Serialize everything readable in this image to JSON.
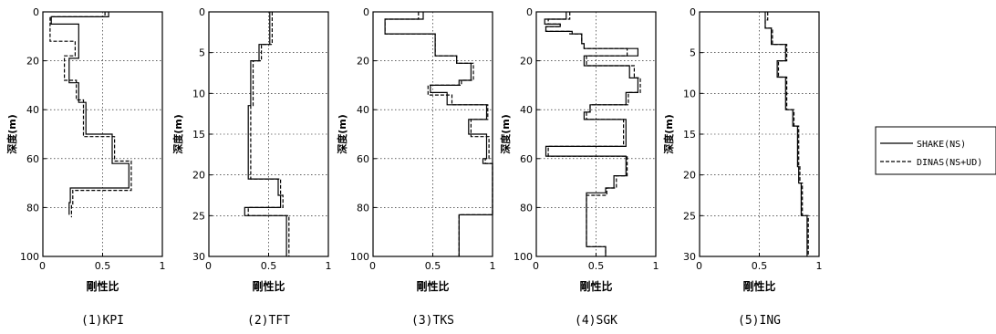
{
  "legend": {
    "solid_label": "SHAKE(NS)",
    "dashed_label": "DINAS(NS+UD)"
  },
  "chart_data": [
    {
      "type": "line",
      "caption": "(1)KPI",
      "xlabel": "剛性比",
      "ylabel": "深度(m)",
      "xlim": [
        0,
        1
      ],
      "ylim": [
        0,
        100
      ],
      "y_inverted": true,
      "xticks": [
        "0",
        "0.5",
        "1"
      ],
      "yticks": [
        "0",
        "20",
        "40",
        "60",
        "80",
        "100"
      ],
      "xtick_values": [
        0,
        0.5,
        1
      ],
      "ytick_values": [
        0,
        20,
        40,
        60,
        80,
        100
      ],
      "grid": "dotted at x=0.5 and each y tick",
      "series": [
        {
          "name": "SHAKE(NS)",
          "style": "solid",
          "x": [
            0.55,
            0.55,
            0.07,
            0.07,
            0.3,
            0.3,
            0.22,
            0.22,
            0.3,
            0.3,
            0.36,
            0.36,
            0.58,
            0.58,
            0.72,
            0.72,
            0.23,
            0.23,
            0.22,
            0.22
          ],
          "y": [
            0,
            2,
            2,
            5,
            5,
            19,
            19,
            29,
            29,
            37,
            37,
            50,
            50,
            62,
            62,
            72,
            72,
            78,
            78,
            83
          ]
        },
        {
          "name": "DINAS(NS+UD)",
          "style": "dashed",
          "x": [
            0.52,
            0.52,
            0.06,
            0.06,
            0.27,
            0.27,
            0.18,
            0.18,
            0.28,
            0.28,
            0.34,
            0.34,
            0.6,
            0.6,
            0.74,
            0.74,
            0.25,
            0.25,
            0.24,
            0.24
          ],
          "y": [
            0,
            2,
            2,
            12,
            12,
            18,
            18,
            28,
            28,
            36,
            36,
            51,
            51,
            61,
            61,
            73,
            73,
            79,
            79,
            84
          ]
        }
      ]
    },
    {
      "type": "line",
      "caption": "(2)TFT",
      "xlabel": "剛性比",
      "ylabel": "深度(m)",
      "xlim": [
        0,
        1
      ],
      "ylim": [
        0,
        30
      ],
      "y_inverted": true,
      "xticks": [
        "0",
        "0.5",
        "1"
      ],
      "yticks": [
        "0",
        "5",
        "10",
        "15",
        "20",
        "25",
        "30"
      ],
      "xtick_values": [
        0,
        0.5,
        1
      ],
      "ytick_values": [
        0,
        5,
        10,
        15,
        20,
        25,
        30
      ],
      "grid": "dotted at x=0.5 and each y tick",
      "series": [
        {
          "name": "SHAKE(NS)",
          "style": "solid",
          "x": [
            0.51,
            0.51,
            0.42,
            0.42,
            0.35,
            0.35,
            0.33,
            0.33,
            0.58,
            0.58,
            0.6,
            0.6,
            0.3,
            0.3,
            0.65,
            0.65
          ],
          "y": [
            0,
            4,
            4,
            6,
            6,
            11.5,
            11.5,
            20.5,
            20.5,
            22.5,
            22.5,
            24,
            24,
            25,
            25,
            30
          ]
        },
        {
          "name": "DINAS(NS+UD)",
          "style": "dashed",
          "x": [
            0.53,
            0.53,
            0.44,
            0.44,
            0.37,
            0.37,
            0.35,
            0.35,
            0.6,
            0.6,
            0.62,
            0.62,
            0.33,
            0.33,
            0.67,
            0.67
          ],
          "y": [
            0,
            4,
            4,
            6,
            6,
            11.5,
            11.5,
            20.5,
            20.5,
            22.5,
            22.5,
            24,
            24,
            25,
            25,
            30
          ]
        }
      ]
    },
    {
      "type": "line",
      "caption": "(3)TKS",
      "xlabel": "剛性比",
      "ylabel": "深度(m)",
      "xlim": [
        0,
        1
      ],
      "ylim": [
        0,
        100
      ],
      "y_inverted": true,
      "xticks": [
        "0",
        "0.5",
        "1"
      ],
      "yticks": [
        "0",
        "20",
        "40",
        "60",
        "80",
        "100"
      ],
      "xtick_values": [
        0,
        0.5,
        1
      ],
      "ytick_values": [
        0,
        20,
        40,
        60,
        80,
        100
      ],
      "grid": "dotted at x=0.5 and each y tick",
      "series": [
        {
          "name": "SHAKE(NS)",
          "style": "solid",
          "x": [
            0.42,
            0.42,
            0.1,
            0.1,
            0.52,
            0.52,
            0.7,
            0.7,
            0.82,
            0.82,
            0.72,
            0.72,
            0.48,
            0.48,
            0.62,
            0.62,
            0.95,
            0.95,
            0.8,
            0.8,
            0.95,
            0.95,
            0.92,
            0.92,
            1.0,
            1.0,
            0.72,
            0.72
          ],
          "y": [
            0,
            3,
            3,
            9,
            9,
            18,
            18,
            21,
            21,
            28,
            28,
            30,
            30,
            33,
            33,
            38,
            38,
            44,
            44,
            50,
            50,
            60,
            60,
            62,
            62,
            83,
            83,
            100
          ]
        },
        {
          "name": "DINAS(NS+UD)",
          "style": "dashed",
          "x": [
            0.38,
            0.38,
            0.1,
            0.1,
            0.52,
            0.52,
            0.7,
            0.7,
            0.84,
            0.84,
            0.74,
            0.74,
            0.46,
            0.46,
            0.66,
            0.66,
            0.96,
            0.96,
            0.82,
            0.82,
            0.97,
            0.97,
            0.94,
            0.94,
            1.0,
            1.0,
            0.72,
            0.72
          ],
          "y": [
            0,
            3,
            3,
            9,
            9,
            18,
            18,
            21,
            21,
            28,
            28,
            30,
            30,
            34,
            34,
            38,
            38,
            44,
            44,
            51,
            51,
            60,
            60,
            62,
            62,
            83,
            83,
            100
          ]
        }
      ]
    },
    {
      "type": "line",
      "caption": "(4)SGK",
      "xlabel": "剛性比",
      "ylabel": "深度(m)",
      "xlim": [
        0,
        1
      ],
      "ylim": [
        0,
        100
      ],
      "y_inverted": true,
      "xticks": [
        "0",
        "0.5",
        "1"
      ],
      "yticks": [
        "0",
        "20",
        "40",
        "60",
        "80",
        "100"
      ],
      "xtick_values": [
        0,
        0.5,
        1
      ],
      "ytick_values": [
        0,
        20,
        40,
        60,
        80,
        100
      ],
      "grid": "dotted at x=0.5 and each y tick",
      "series": [
        {
          "name": "SHAKE(NS)",
          "style": "solid",
          "x": [
            0.25,
            0.25,
            0.07,
            0.07,
            0.2,
            0.2,
            0.08,
            0.08,
            0.3,
            0.3,
            0.38,
            0.38,
            0.4,
            0.4,
            0.85,
            0.85,
            0.4,
            0.4,
            0.78,
            0.78,
            0.85,
            0.85,
            0.75,
            0.75,
            0.45,
            0.45,
            0.4,
            0.4,
            0.75,
            0.75,
            0.08,
            0.08,
            0.75,
            0.75,
            0.65,
            0.65,
            0.58,
            0.58,
            0.42,
            0.42,
            0.58,
            0.58
          ],
          "y": [
            0,
            3,
            3,
            5,
            5,
            6,
            6,
            8,
            8,
            9,
            9,
            13,
            13,
            15,
            15,
            18,
            18,
            22,
            22,
            27,
            27,
            33,
            33,
            38,
            38,
            41,
            41,
            44,
            44,
            55,
            55,
            59,
            59,
            67,
            67,
            72,
            72,
            74,
            74,
            96,
            96,
            100
          ]
        },
        {
          "name": "DINAS(NS+UD)",
          "style": "dashed",
          "x": [
            0.28,
            0.28,
            0.1,
            0.1,
            0.2,
            0.2,
            0.08,
            0.08,
            0.28,
            0.28,
            0.38,
            0.38,
            0.4,
            0.4,
            0.76,
            0.76,
            0.42,
            0.42,
            0.82,
            0.82,
            0.87,
            0.87,
            0.77,
            0.77,
            0.45,
            0.45,
            0.42,
            0.42,
            0.73,
            0.73,
            0.1,
            0.1,
            0.76,
            0.76,
            0.67,
            0.67,
            0.59,
            0.59,
            0.42,
            0.42,
            0.58,
            0.58
          ],
          "y": [
            0,
            3,
            3,
            5,
            5,
            6,
            6,
            8,
            8,
            9,
            9,
            13,
            13,
            15,
            15,
            18,
            18,
            22,
            22,
            27,
            27,
            33,
            33,
            38,
            38,
            41,
            41,
            44,
            44,
            55,
            55,
            59,
            59,
            67,
            67,
            72,
            72,
            75,
            75,
            96,
            96,
            100
          ]
        }
      ]
    },
    {
      "type": "line",
      "caption": "(5)ING",
      "xlabel": "剛性比",
      "ylabel": "深度(m)",
      "xlim": [
        0,
        1
      ],
      "ylim": [
        0,
        30
      ],
      "y_inverted": true,
      "xticks": [
        "0",
        "0.5",
        "1"
      ],
      "yticks": [
        "0",
        "5",
        "10",
        "15",
        "20",
        "25",
        "30"
      ],
      "xtick_values": [
        0,
        0.5,
        1
      ],
      "ytick_values": [
        0,
        5,
        10,
        15,
        20,
        25,
        30
      ],
      "grid": "dotted at x=0.5 and each y tick",
      "series": [
        {
          "name": "SHAKE(NS)",
          "style": "solid",
          "x": [
            0.55,
            0.55,
            0.55,
            0.55,
            0.6,
            0.6,
            0.72,
            0.72,
            0.65,
            0.65,
            0.72,
            0.72,
            0.78,
            0.78,
            0.82,
            0.82,
            0.83,
            0.83,
            0.85,
            0.85,
            0.9,
            0.9
          ],
          "y": [
            0,
            1,
            1,
            2,
            2,
            4,
            4,
            6,
            6,
            8,
            8,
            12,
            12,
            14,
            14,
            19,
            19,
            21,
            21,
            25,
            25,
            30
          ]
        },
        {
          "name": "DINAS(NS+UD)",
          "style": "dashed",
          "x": [
            0.57,
            0.57,
            0.55,
            0.55,
            0.61,
            0.61,
            0.73,
            0.73,
            0.66,
            0.66,
            0.73,
            0.73,
            0.79,
            0.79,
            0.83,
            0.83,
            0.84,
            0.84,
            0.86,
            0.86,
            0.91,
            0.91
          ],
          "y": [
            0,
            1,
            1,
            2,
            2,
            4,
            4,
            6,
            6,
            8,
            8,
            12,
            12,
            14,
            14,
            19,
            19,
            21,
            21,
            25,
            25,
            30
          ]
        }
      ]
    }
  ]
}
